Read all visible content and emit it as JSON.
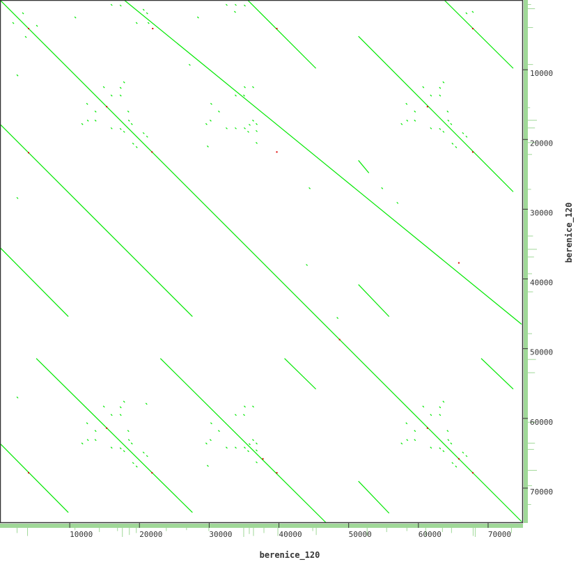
{
  "chart_data": {
    "type": "dotplot",
    "xlabel": "berenice_120",
    "ylabel": "berenice_120",
    "xlim": [
      0,
      75000
    ],
    "ylim": [
      0,
      75000
    ],
    "y_inverted": true,
    "grid": false,
    "xticks": [
      10000,
      20000,
      30000,
      40000,
      50000,
      60000,
      70000
    ],
    "yticks": [
      10000,
      20000,
      30000,
      40000,
      50000,
      60000,
      70000
    ],
    "colors": {
      "match": "#00e800",
      "mismatch": "#e00000",
      "coverage": "#a0d898",
      "coverage_mark": "#f06060",
      "frame": "#333333"
    },
    "segments": [
      {
        "x1": 0,
        "y1": 0,
        "x2": 74800,
        "y2": 74800
      },
      {
        "x1": 17800,
        "y1": 0,
        "x2": 74800,
        "y2": 46500
      },
      {
        "x1": 35500,
        "y1": 0,
        "x2": 45300,
        "y2": 9800
      },
      {
        "x1": 51400,
        "y1": 5200,
        "x2": 73600,
        "y2": 27500
      },
      {
        "x1": 63700,
        "y1": 0,
        "x2": 73600,
        "y2": 9800
      },
      {
        "x1": 51400,
        "y1": 23000,
        "x2": 52900,
        "y2": 24800
      },
      {
        "x1": 0,
        "y1": 17800,
        "x2": 27600,
        "y2": 45400
      },
      {
        "x1": 0,
        "y1": 35500,
        "x2": 9800,
        "y2": 45400
      },
      {
        "x1": 5200,
        "y1": 51400,
        "x2": 27600,
        "y2": 73500
      },
      {
        "x1": 23000,
        "y1": 51400,
        "x2": 46800,
        "y2": 75000
      },
      {
        "x1": 100,
        "y1": 63700,
        "x2": 9800,
        "y2": 73500
      },
      {
        "x1": 40800,
        "y1": 51400,
        "x2": 45300,
        "y2": 55800
      },
      {
        "x1": 51400,
        "y1": 69000,
        "x2": 55800,
        "y2": 73600
      },
      {
        "x1": 69000,
        "y1": 51400,
        "x2": 73600,
        "y2": 55800
      },
      {
        "x1": 51400,
        "y1": 40800,
        "x2": 55800,
        "y2": 45400
      }
    ],
    "dots": [
      [
        14800,
        12400
      ],
      [
        15900,
        13600
      ],
      [
        17200,
        12500
      ],
      [
        17700,
        11700
      ],
      [
        17200,
        13600
      ],
      [
        12400,
        14800
      ],
      [
        13600,
        15900
      ],
      [
        12500,
        17200
      ],
      [
        11700,
        17700
      ],
      [
        13600,
        17200
      ],
      [
        18300,
        15900
      ],
      [
        15900,
        18300
      ],
      [
        18800,
        17700
      ],
      [
        17700,
        18800
      ],
      [
        19000,
        20500
      ],
      [
        20500,
        19000
      ],
      [
        21000,
        19500
      ],
      [
        19500,
        21000
      ],
      [
        18400,
        17200
      ],
      [
        17200,
        18400
      ],
      [
        30200,
        14800
      ],
      [
        31300,
        15900
      ],
      [
        30100,
        17200
      ],
      [
        29500,
        17700
      ],
      [
        35000,
        12400
      ],
      [
        36200,
        12400
      ],
      [
        33700,
        13600
      ],
      [
        34900,
        13600
      ],
      [
        32400,
        18300
      ],
      [
        33700,
        18300
      ],
      [
        35000,
        18300
      ],
      [
        35700,
        17800
      ],
      [
        36200,
        17200
      ],
      [
        36700,
        17700
      ],
      [
        35500,
        18800
      ],
      [
        36700,
        18700
      ],
      [
        29700,
        20900
      ],
      [
        36700,
        20400
      ],
      [
        14800,
        58200
      ],
      [
        15900,
        59400
      ],
      [
        17200,
        58300
      ],
      [
        17700,
        57500
      ],
      [
        17200,
        59400
      ],
      [
        12400,
        60600
      ],
      [
        13600,
        61700
      ],
      [
        12500,
        63000
      ],
      [
        11700,
        63500
      ],
      [
        13600,
        63000
      ],
      [
        18300,
        61700
      ],
      [
        15900,
        64100
      ],
      [
        18800,
        63500
      ],
      [
        17700,
        64600
      ],
      [
        19000,
        66300
      ],
      [
        20500,
        64800
      ],
      [
        21000,
        65300
      ],
      [
        19500,
        66800
      ],
      [
        18400,
        63000
      ],
      [
        17200,
        64200
      ],
      [
        60600,
        12400
      ],
      [
        61700,
        13600
      ],
      [
        63000,
        12500
      ],
      [
        63500,
        11700
      ],
      [
        63000,
        13600
      ],
      [
        58200,
        14800
      ],
      [
        59400,
        15900
      ],
      [
        58300,
        17200
      ],
      [
        57500,
        17700
      ],
      [
        59400,
        17200
      ],
      [
        64100,
        15900
      ],
      [
        61700,
        18300
      ],
      [
        64600,
        17700
      ],
      [
        63500,
        18800
      ],
      [
        64800,
        20500
      ],
      [
        66300,
        19000
      ],
      [
        66800,
        19500
      ],
      [
        65300,
        21000
      ],
      [
        64200,
        17200
      ],
      [
        63000,
        18400
      ],
      [
        60600,
        58200
      ],
      [
        61700,
        59400
      ],
      [
        63000,
        58300
      ],
      [
        63500,
        57500
      ],
      [
        63000,
        59400
      ],
      [
        58200,
        60600
      ],
      [
        59400,
        61700
      ],
      [
        58300,
        63000
      ],
      [
        57500,
        63500
      ],
      [
        59400,
        63000
      ],
      [
        64100,
        61700
      ],
      [
        61700,
        64100
      ],
      [
        64600,
        63500
      ],
      [
        63500,
        64600
      ],
      [
        64800,
        66300
      ],
      [
        66300,
        64800
      ],
      [
        66800,
        65300
      ],
      [
        65300,
        66800
      ],
      [
        64200,
        63000
      ],
      [
        63000,
        64200
      ],
      [
        30200,
        60600
      ],
      [
        31300,
        61700
      ],
      [
        30100,
        63000
      ],
      [
        29500,
        63500
      ],
      [
        35000,
        58200
      ],
      [
        36200,
        58200
      ],
      [
        33700,
        59400
      ],
      [
        34900,
        59400
      ],
      [
        32400,
        64100
      ],
      [
        33700,
        64100
      ],
      [
        35000,
        64100
      ],
      [
        35700,
        63600
      ],
      [
        36200,
        63000
      ],
      [
        36700,
        63500
      ],
      [
        35500,
        64600
      ],
      [
        36700,
        64500
      ],
      [
        29700,
        66700
      ],
      [
        36700,
        66200
      ],
      [
        15900,
        600
      ],
      [
        17200,
        700
      ],
      [
        20500,
        1300
      ],
      [
        21000,
        1800
      ],
      [
        19500,
        3200
      ],
      [
        21200,
        3200
      ],
      [
        3200,
        1800
      ],
      [
        1800,
        3200
      ],
      [
        5200,
        3600
      ],
      [
        3600,
        5200
      ],
      [
        10700,
        2400
      ],
      [
        2400,
        10700
      ],
      [
        28300,
        2400
      ],
      [
        33600,
        1600
      ],
      [
        32400,
        600
      ],
      [
        33700,
        600
      ],
      [
        35000,
        700
      ],
      [
        27100,
        9200
      ],
      [
        2400,
        28300
      ],
      [
        2400,
        56900
      ],
      [
        20900,
        57800
      ],
      [
        44300,
        26900
      ],
      [
        48300,
        45500
      ],
      [
        56900,
        29000
      ],
      [
        67700,
        1600
      ],
      [
        66800,
        1800
      ],
      [
        43900,
        37900
      ],
      [
        54700,
        26900
      ]
    ],
    "mismatch_marks": [
      [
        4100,
        4100
      ],
      [
        15300,
        15300
      ],
      [
        21800,
        21800
      ],
      [
        21900,
        4100
      ],
      [
        4100,
        21900
      ],
      [
        39700,
        4100
      ],
      [
        61300,
        15300
      ],
      [
        67800,
        4100
      ],
      [
        67800,
        21800
      ],
      [
        39700,
        21800
      ],
      [
        15300,
        61400
      ],
      [
        4100,
        67800
      ],
      [
        21800,
        67800
      ],
      [
        48700,
        48700
      ],
      [
        61300,
        61400
      ],
      [
        65800,
        65800
      ],
      [
        67800,
        67800
      ],
      [
        37700,
        65800
      ],
      [
        39700,
        67800
      ],
      [
        65800,
        37700
      ]
    ],
    "coverage_x_spikes": [
      [
        2400,
        0.6
      ],
      [
        3900,
        0.9
      ],
      [
        10700,
        0.3
      ],
      [
        14200,
        0.5
      ],
      [
        16800,
        0.4
      ],
      [
        17500,
        1.0
      ],
      [
        18500,
        0.8
      ],
      [
        19500,
        0.6
      ],
      [
        23800,
        0.4
      ],
      [
        26700,
        0.3
      ],
      [
        29900,
        0.4
      ],
      [
        34900,
        1.0
      ],
      [
        35700,
        0.7
      ],
      [
        36300,
        0.9
      ],
      [
        37800,
        0.6
      ],
      [
        39800,
        0.9
      ],
      [
        44800,
        0.4
      ],
      [
        45300,
        0.8
      ],
      [
        52600,
        0.9
      ],
      [
        55400,
        0.5
      ],
      [
        58300,
        0.4
      ],
      [
        61000,
        0.9
      ],
      [
        63400,
        0.5
      ],
      [
        64700,
        0.6
      ],
      [
        67800,
        0.9
      ],
      [
        68100,
        1.0
      ],
      [
        73300,
        0.6
      ]
    ],
    "coverage_y_spikes": [
      [
        600,
        0.4
      ],
      [
        1200,
        0.8
      ],
      [
        3900,
        0.6
      ],
      [
        9200,
        0.6
      ],
      [
        15400,
        0.3
      ],
      [
        17200,
        1.0
      ],
      [
        18300,
        0.8
      ],
      [
        20400,
        0.9
      ],
      [
        22100,
        0.5
      ],
      [
        27100,
        0.4
      ],
      [
        33800,
        0.6
      ],
      [
        35700,
        1.0
      ],
      [
        36800,
        0.7
      ],
      [
        39200,
        0.5
      ],
      [
        41800,
        0.6
      ],
      [
        47800,
        0.5
      ],
      [
        51500,
        0.9
      ],
      [
        53400,
        0.8
      ],
      [
        60500,
        0.9
      ],
      [
        63500,
        0.8
      ],
      [
        64400,
        0.7
      ],
      [
        67400,
        1.0
      ],
      [
        69600,
        0.5
      ],
      [
        72300,
        0.4
      ]
    ]
  }
}
